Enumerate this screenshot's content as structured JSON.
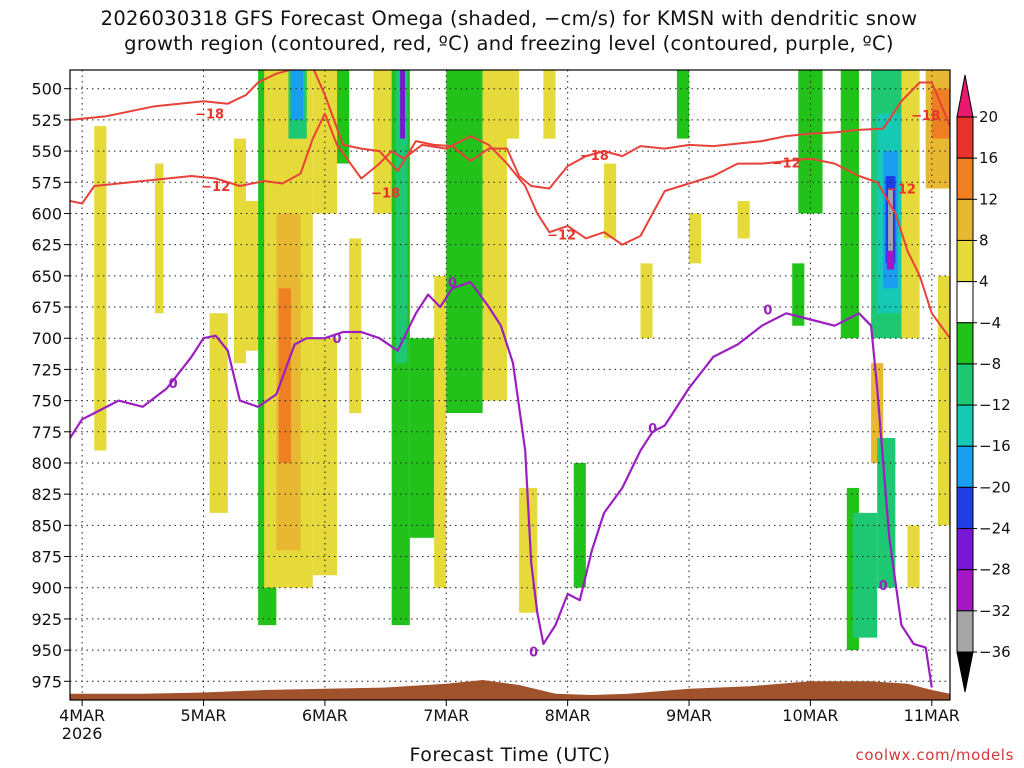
{
  "chart_data": {
    "type": "heatmap",
    "title": "2026030318 GFS Forecast Omega (shaded, −cm/s) for KMSN with dendritic snow\ngrowth region (contoured, red, ºC) and freezing level (contoured, purple, ºC)",
    "xlabel": "Forecast Time (UTC)",
    "ylabel": "",
    "x_ticks": [
      "4MAR\n2026",
      "5MAR",
      "6MAR",
      "7MAR",
      "8MAR",
      "9MAR",
      "10MAR",
      "11MAR"
    ],
    "y_ticks": [
      500,
      525,
      550,
      575,
      600,
      625,
      650,
      675,
      700,
      725,
      750,
      775,
      800,
      825,
      850,
      875,
      900,
      925,
      950,
      975
    ],
    "xlim_days": [
      3.9,
      11.15
    ],
    "ylim_hpa": [
      485,
      990
    ],
    "grid": true,
    "colorbar": {
      "levels": [
        "20",
        "16",
        "12",
        "8",
        "4",
        "−4",
        "−8",
        "−12",
        "−16",
        "−20",
        "−24",
        "−28",
        "−32",
        "−36"
      ],
      "colors": [
        "#e8196e",
        "#e8332b",
        "#ee7f22",
        "#e8b832",
        "#e6d93a",
        "#ffffff",
        "#22c21a",
        "#1ec873",
        "#16c9b4",
        "#1c9ef0",
        "#1f3fe6",
        "#7a16d6",
        "#a517c4",
        "#a6a6a6",
        "#000000"
      ]
    },
    "contours": [
      {
        "name": "dendritic-top",
        "label": "−18",
        "color": "#e8423a",
        "x": [
          3.9,
          4.2,
          4.4,
          4.6,
          4.8,
          5.0,
          5.2,
          5.35,
          5.45,
          5.6,
          5.75,
          5.9,
          6.0,
          6.15,
          6.3,
          6.45,
          6.6,
          6.75,
          6.9,
          7.05,
          7.2,
          7.35,
          7.5,
          7.6,
          7.7,
          7.85,
          8.0,
          8.15,
          8.3,
          8.45,
          8.6,
          8.8,
          9.0,
          9.2,
          9.4,
          9.6,
          9.8,
          10.0,
          10.2,
          10.4,
          10.6,
          10.75,
          10.9,
          11.0,
          11.15
        ],
        "y": [
          525,
          522,
          518,
          514,
          512,
          510,
          512,
          505,
          495,
          488,
          484,
          483,
          505,
          545,
          548,
          550,
          566,
          542,
          545,
          546,
          558,
          548,
          548,
          570,
          578,
          580,
          562,
          554,
          550,
          554,
          546,
          548,
          545,
          546,
          544,
          542,
          538,
          536,
          535,
          533,
          532,
          510,
          495,
          495,
          530
        ]
      },
      {
        "name": "dendritic-bottom",
        "label": "−12",
        "color": "#e8423a",
        "x": [
          3.9,
          4.0,
          4.1,
          4.3,
          4.5,
          4.7,
          4.9,
          5.1,
          5.3,
          5.5,
          5.65,
          5.8,
          5.9,
          6.0,
          6.1,
          6.3,
          6.45,
          6.55,
          6.65,
          6.8,
          7.0,
          7.2,
          7.35,
          7.5,
          7.65,
          7.75,
          7.85,
          8.0,
          8.15,
          8.3,
          8.45,
          8.6,
          8.7,
          8.8,
          9.0,
          9.2,
          9.4,
          9.6,
          9.8,
          10.0,
          10.2,
          10.4,
          10.55,
          10.7,
          10.8,
          10.9,
          11.0,
          11.15
        ],
        "y": [
          590,
          592,
          578,
          576,
          574,
          572,
          570,
          572,
          578,
          574,
          576,
          568,
          540,
          520,
          545,
          572,
          560,
          550,
          556,
          545,
          548,
          538,
          545,
          560,
          578,
          600,
          615,
          610,
          620,
          615,
          625,
          618,
          600,
          582,
          576,
          570,
          560,
          560,
          558,
          556,
          560,
          570,
          575,
          600,
          630,
          650,
          680,
          700
        ]
      },
      {
        "name": "freezing-level",
        "label": "0",
        "color": "#9b1fc0",
        "x": [
          3.9,
          4.0,
          4.1,
          4.3,
          4.5,
          4.7,
          4.9,
          5.0,
          5.1,
          5.2,
          5.3,
          5.45,
          5.6,
          5.75,
          5.85,
          6.0,
          6.15,
          6.3,
          6.45,
          6.6,
          6.75,
          6.85,
          6.95,
          7.05,
          7.2,
          7.35,
          7.45,
          7.55,
          7.65,
          7.7,
          7.75,
          7.8,
          7.9,
          8.0,
          8.1,
          8.2,
          8.3,
          8.45,
          8.6,
          8.7,
          8.8,
          9.0,
          9.2,
          9.4,
          9.6,
          9.8,
          10.0,
          10.2,
          10.4,
          10.5,
          10.55,
          10.6,
          10.65,
          10.75,
          10.85,
          10.95,
          11.0
        ],
        "y": [
          780,
          765,
          760,
          750,
          755,
          740,
          715,
          700,
          698,
          710,
          750,
          755,
          745,
          705,
          700,
          700,
          695,
          695,
          700,
          710,
          680,
          665,
          675,
          660,
          655,
          675,
          690,
          720,
          790,
          880,
          920,
          945,
          930,
          905,
          910,
          870,
          840,
          820,
          790,
          775,
          770,
          740,
          715,
          705,
          690,
          680,
          685,
          690,
          680,
          690,
          740,
          800,
          860,
          930,
          945,
          948,
          980
        ]
      }
    ],
    "contour_labels": [
      {
        "text": "−18",
        "x": 5.05,
        "y": 520
      },
      {
        "text": "−18",
        "x": 6.5,
        "y": 583
      },
      {
        "text": "−18",
        "x": 8.22,
        "y": 553
      },
      {
        "text": "−18",
        "x": 10.95,
        "y": 521
      },
      {
        "text": "−12",
        "x": 5.1,
        "y": 578
      },
      {
        "text": "−12",
        "x": 7.95,
        "y": 617
      },
      {
        "text": "−12",
        "x": 9.8,
        "y": 559
      },
      {
        "text": "−12",
        "x": 10.75,
        "y": 580
      },
      {
        "text": "0",
        "x": 6.1,
        "y": 700
      },
      {
        "text": "0",
        "x": 4.75,
        "y": 736
      },
      {
        "text": "0",
        "x": 7.05,
        "y": 655
      },
      {
        "text": "0",
        "x": 7.72,
        "y": 951
      },
      {
        "text": "0",
        "x": 8.7,
        "y": 772
      },
      {
        "text": "0",
        "x": 9.65,
        "y": 677
      },
      {
        "text": "0",
        "x": 10.6,
        "y": 898
      }
    ],
    "omega_patches": [
      {
        "x": [
          4.1,
          4.2
        ],
        "p": [
          530,
          790
        ],
        "value": 5
      },
      {
        "x": [
          4.6,
          4.67
        ],
        "p": [
          560,
          680
        ],
        "value": 5
      },
      {
        "x": [
          5.05,
          5.2
        ],
        "p": [
          680,
          840
        ],
        "value": 5
      },
      {
        "x": [
          5.25,
          5.35
        ],
        "p": [
          540,
          720
        ],
        "value": 5
      },
      {
        "x": [
          5.35,
          5.45
        ],
        "p": [
          590,
          710
        ],
        "value": 5
      },
      {
        "x": [
          5.45,
          5.6
        ],
        "p": [
          485,
          930
        ],
        "value": -6
      },
      {
        "x": [
          5.5,
          5.9
        ],
        "p": [
          485,
          900
        ],
        "value": 6
      },
      {
        "x": [
          5.6,
          5.8
        ],
        "p": [
          600,
          870
        ],
        "value": 9
      },
      {
        "x": [
          5.62,
          5.72
        ],
        "p": [
          660,
          800
        ],
        "value": 13
      },
      {
        "x": [
          5.7,
          5.85
        ],
        "p": [
          485,
          540
        ],
        "value": -10
      },
      {
        "x": [
          5.72,
          5.82
        ],
        "p": [
          485,
          525
        ],
        "value": -20
      },
      {
        "x": [
          5.9,
          6.1
        ],
        "p": [
          485,
          600
        ],
        "value": 5
      },
      {
        "x": [
          5.9,
          6.1
        ],
        "p": [
          700,
          890
        ],
        "value": 5
      },
      {
        "x": [
          6.1,
          6.2
        ],
        "p": [
          485,
          560
        ],
        "value": -6
      },
      {
        "x": [
          6.2,
          6.3
        ],
        "p": [
          620,
          760
        ],
        "value": 5
      },
      {
        "x": [
          6.4,
          6.6
        ],
        "p": [
          485,
          600
        ],
        "value": 5
      },
      {
        "x": [
          6.55,
          6.7
        ],
        "p": [
          485,
          930
        ],
        "value": -6
      },
      {
        "x": [
          6.58,
          6.68
        ],
        "p": [
          485,
          720
        ],
        "value": -10
      },
      {
        "x": [
          6.62,
          6.66
        ],
        "p": [
          485,
          540
        ],
        "value": -26
      },
      {
        "x": [
          6.7,
          6.9
        ],
        "p": [
          700,
          860
        ],
        "value": -6
      },
      {
        "x": [
          6.9,
          7.0
        ],
        "p": [
          650,
          900
        ],
        "value": 5
      },
      {
        "x": [
          7.0,
          7.3
        ],
        "p": [
          485,
          760
        ],
        "value": -6
      },
      {
        "x": [
          7.3,
          7.5
        ],
        "p": [
          485,
          750
        ],
        "value": 5
      },
      {
        "x": [
          7.5,
          7.6
        ],
        "p": [
          485,
          540
        ],
        "value": 5
      },
      {
        "x": [
          7.6,
          7.75
        ],
        "p": [
          820,
          920
        ],
        "value": 5
      },
      {
        "x": [
          7.8,
          7.9
        ],
        "p": [
          485,
          540
        ],
        "value": 5
      },
      {
        "x": [
          8.05,
          8.15
        ],
        "p": [
          800,
          900
        ],
        "value": -6
      },
      {
        "x": [
          8.3,
          8.4
        ],
        "p": [
          560,
          620
        ],
        "value": 5
      },
      {
        "x": [
          8.6,
          8.7
        ],
        "p": [
          640,
          700
        ],
        "value": 5
      },
      {
        "x": [
          8.9,
          9.0
        ],
        "p": [
          485,
          540
        ],
        "value": -6
      },
      {
        "x": [
          9.0,
          9.1
        ],
        "p": [
          600,
          640
        ],
        "value": 5
      },
      {
        "x": [
          9.4,
          9.5
        ],
        "p": [
          590,
          620
        ],
        "value": 5
      },
      {
        "x": [
          9.9,
          10.1
        ],
        "p": [
          485,
          600
        ],
        "value": -6
      },
      {
        "x": [
          9.85,
          9.95
        ],
        "p": [
          640,
          690
        ],
        "value": -6
      },
      {
        "x": [
          10.25,
          10.4
        ],
        "p": [
          485,
          700
        ],
        "value": -6
      },
      {
        "x": [
          10.3,
          10.4
        ],
        "p": [
          820,
          950
        ],
        "value": -6
      },
      {
        "x": [
          10.35,
          10.55
        ],
        "p": [
          840,
          940
        ],
        "value": -10
      },
      {
        "x": [
          10.5,
          10.8
        ],
        "p": [
          485,
          700
        ],
        "value": -10
      },
      {
        "x": [
          10.55,
          10.75
        ],
        "p": [
          520,
          680
        ],
        "value": -14
      },
      {
        "x": [
          10.6,
          10.72
        ],
        "p": [
          550,
          660
        ],
        "value": -18
      },
      {
        "x": [
          10.62,
          10.7
        ],
        "p": [
          570,
          640
        ],
        "value": -22
      },
      {
        "x": [
          10.64,
          10.68
        ],
        "p": [
          580,
          630
        ],
        "value": -36
      },
      {
        "x": [
          10.63,
          10.69
        ],
        "p": [
          630,
          645
        ],
        "value": -32
      },
      {
        "x": [
          10.5,
          10.6
        ],
        "p": [
          720,
          800
        ],
        "value": 9
      },
      {
        "x": [
          10.55,
          10.7
        ],
        "p": [
          780,
          900
        ],
        "value": -10
      },
      {
        "x": [
          10.75,
          10.9
        ],
        "p": [
          485,
          700
        ],
        "value": 5
      },
      {
        "x": [
          10.8,
          10.9
        ],
        "p": [
          850,
          900
        ],
        "value": 5
      },
      {
        "x": [
          10.95,
          11.15
        ],
        "p": [
          485,
          580
        ],
        "value": 9
      },
      {
        "x": [
          11.0,
          11.15
        ],
        "p": [
          500,
          540
        ],
        "value": 13
      },
      {
        "x": [
          11.05,
          11.15
        ],
        "p": [
          650,
          850
        ],
        "value": 5
      }
    ],
    "terrain": {
      "color": "#a0522d",
      "x": [
        3.9,
        4.5,
        5.0,
        5.5,
        6.0,
        6.5,
        7.0,
        7.3,
        7.6,
        7.9,
        8.2,
        8.5,
        9.0,
        9.5,
        10.0,
        10.5,
        10.8,
        11.0,
        11.15
      ],
      "p": [
        985,
        985,
        984,
        982,
        981,
        980,
        977,
        974,
        978,
        985,
        986,
        985,
        981,
        979,
        975,
        975,
        977,
        982,
        985
      ]
    }
  },
  "credit": "coolwx.com/models"
}
